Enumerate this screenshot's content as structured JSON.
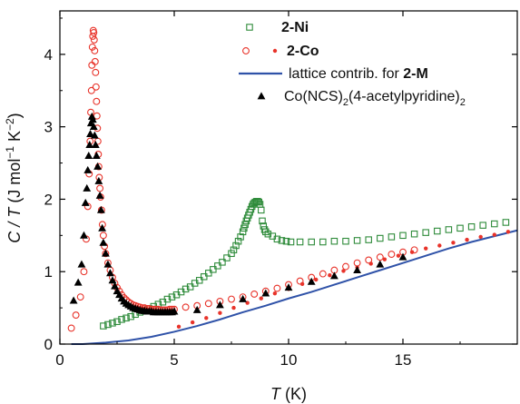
{
  "chart_data": {
    "type": "scatter",
    "xlabel": {
      "main": "T",
      "unit": " (K)"
    },
    "ylabel": {
      "main": "C / T",
      "unit_prefix": " (J mol",
      "unit_sup1": "−1",
      "unit_mid": " K",
      "unit_sup2": "−2",
      "unit_suffix": ")"
    },
    "xlim": [
      0,
      20
    ],
    "ylim": [
      0,
      4.6
    ],
    "xticks": [
      0,
      5,
      10,
      15
    ],
    "yticks": [
      0,
      1,
      2,
      3,
      4
    ],
    "grid": false,
    "legend_position": "top-right",
    "legend": [
      {
        "series": "ni",
        "label": "2-Ni",
        "bold": true
      },
      {
        "series": "co",
        "label": "2-Co",
        "bold": true
      },
      {
        "series": "lattice",
        "label_prefix": "lattice contrib. for ",
        "label_bold": "2-M"
      },
      {
        "series": "ref",
        "label_parts": [
          "Co(NCS)",
          "2",
          "(4-acetylpyridine)",
          "2"
        ]
      }
    ],
    "series": [
      {
        "id": "ni",
        "marker": "open-square",
        "color": "#2e8b3a",
        "x": [
          1.9,
          2.1,
          2.3,
          2.5,
          2.7,
          2.9,
          3.1,
          3.3,
          3.5,
          3.7,
          3.9,
          4.1,
          4.3,
          4.5,
          4.7,
          4.9,
          5.1,
          5.3,
          5.5,
          5.7,
          5.9,
          6.1,
          6.3,
          6.5,
          6.7,
          6.9,
          7.1,
          7.3,
          7.5,
          7.6,
          7.7,
          7.8,
          7.9,
          8.0,
          8.05,
          8.1,
          8.15,
          8.2,
          8.25,
          8.3,
          8.35,
          8.4,
          8.45,
          8.5,
          8.55,
          8.6,
          8.65,
          8.7,
          8.75,
          8.8,
          8.85,
          8.9,
          8.95,
          9.0,
          9.1,
          9.3,
          9.5,
          9.7,
          9.9,
          10.1,
          10.5,
          11.0,
          11.5,
          12.0,
          12.5,
          13.0,
          13.5,
          14.0,
          14.5,
          15.0,
          15.5,
          16.0,
          16.5,
          17.0,
          17.5,
          18.0,
          18.5,
          19.0,
          19.5
        ],
        "y": [
          0.25,
          0.27,
          0.29,
          0.31,
          0.34,
          0.36,
          0.38,
          0.41,
          0.44,
          0.46,
          0.49,
          0.52,
          0.55,
          0.58,
          0.62,
          0.65,
          0.68,
          0.72,
          0.76,
          0.79,
          0.84,
          0.88,
          0.93,
          0.98,
          1.03,
          1.08,
          1.13,
          1.19,
          1.25,
          1.3,
          1.36,
          1.42,
          1.48,
          1.55,
          1.6,
          1.65,
          1.7,
          1.74,
          1.78,
          1.82,
          1.86,
          1.9,
          1.93,
          1.95,
          1.96,
          1.97,
          1.97,
          1.96,
          1.93,
          1.85,
          1.7,
          1.63,
          1.58,
          1.55,
          1.52,
          1.49,
          1.45,
          1.43,
          1.42,
          1.41,
          1.41,
          1.41,
          1.41,
          1.42,
          1.42,
          1.43,
          1.44,
          1.46,
          1.48,
          1.5,
          1.52,
          1.54,
          1.56,
          1.58,
          1.6,
          1.62,
          1.64,
          1.66,
          1.68
        ]
      },
      {
        "id": "co",
        "marker": "open-circle",
        "color": "#e8332a",
        "x": [
          0.5,
          0.7,
          0.9,
          1.05,
          1.15,
          1.22,
          1.28,
          1.32,
          1.35,
          1.38,
          1.4,
          1.42,
          1.44,
          1.46,
          1.48,
          1.5,
          1.52,
          1.54,
          1.56,
          1.58,
          1.6,
          1.62,
          1.64,
          1.66,
          1.68,
          1.7,
          1.72,
          1.75,
          1.78,
          1.82,
          1.86,
          1.9,
          1.95,
          2.0,
          2.1,
          2.2,
          2.3,
          2.4,
          2.5,
          2.6,
          2.7,
          2.8,
          2.9,
          3.0,
          3.1,
          3.2,
          3.3,
          3.4,
          3.5,
          3.6,
          3.7,
          3.8,
          3.9,
          4.0,
          4.1,
          4.2,
          4.3,
          4.4,
          4.5,
          4.6,
          4.7,
          4.8,
          4.9,
          5.0,
          5.5,
          6.0,
          6.5,
          7.0,
          7.5,
          8.0,
          8.5,
          9.0,
          9.5,
          10.0,
          10.5,
          11.0,
          11.5,
          12.0,
          12.5,
          13.0,
          13.5,
          14.0,
          14.5,
          15.0,
          15.5
        ],
        "y": [
          0.22,
          0.4,
          0.65,
          1.0,
          1.45,
          1.9,
          2.35,
          2.8,
          3.2,
          3.5,
          3.85,
          4.1,
          4.25,
          4.33,
          4.3,
          4.2,
          4.05,
          3.9,
          3.75,
          3.55,
          3.35,
          3.15,
          2.98,
          2.8,
          2.62,
          2.45,
          2.3,
          2.15,
          2.03,
          1.85,
          1.65,
          1.5,
          1.35,
          1.25,
          1.12,
          1.02,
          0.92,
          0.84,
          0.78,
          0.73,
          0.68,
          0.64,
          0.61,
          0.58,
          0.56,
          0.54,
          0.53,
          0.52,
          0.51,
          0.5,
          0.5,
          0.49,
          0.49,
          0.48,
          0.48,
          0.48,
          0.48,
          0.47,
          0.47,
          0.47,
          0.47,
          0.48,
          0.48,
          0.48,
          0.51,
          0.53,
          0.56,
          0.59,
          0.62,
          0.65,
          0.69,
          0.73,
          0.77,
          0.82,
          0.87,
          0.92,
          0.97,
          1.02,
          1.07,
          1.12,
          1.16,
          1.2,
          1.24,
          1.27,
          1.3
        ]
      },
      {
        "id": "co_fill",
        "marker": "filled-dot",
        "color": "#e8332a",
        "x": [
          5.2,
          5.8,
          6.4,
          7.0,
          7.6,
          8.2,
          8.8,
          9.4,
          10.0,
          10.6,
          11.2,
          11.8,
          12.4,
          13.0,
          13.6,
          14.2,
          14.8,
          15.4,
          16.0,
          16.6,
          17.2,
          17.8,
          18.4,
          19.0,
          19.6
        ],
        "y": [
          0.24,
          0.3,
          0.36,
          0.43,
          0.5,
          0.57,
          0.63,
          0.7,
          0.76,
          0.83,
          0.89,
          0.95,
          1.01,
          1.06,
          1.11,
          1.17,
          1.22,
          1.27,
          1.32,
          1.36,
          1.4,
          1.44,
          1.48,
          1.51,
          1.55
        ]
      },
      {
        "id": "lattice",
        "marker": "line",
        "color": "#2f52a8",
        "x": [
          0.5,
          1.0,
          2.0,
          3.0,
          4.0,
          5.0,
          6.0,
          7.0,
          8.0,
          9.0,
          10.0,
          11.0,
          12.0,
          13.0,
          14.0,
          15.0,
          16.0,
          17.0,
          18.0,
          19.0,
          20.0
        ],
        "y": [
          0.0,
          0.0,
          0.02,
          0.05,
          0.1,
          0.17,
          0.25,
          0.34,
          0.44,
          0.53,
          0.63,
          0.72,
          0.82,
          0.92,
          1.02,
          1.12,
          1.22,
          1.32,
          1.41,
          1.49,
          1.57
        ]
      },
      {
        "id": "ref",
        "marker": "filled-triangle",
        "color": "#000000",
        "x": [
          0.6,
          0.8,
          0.95,
          1.05,
          1.12,
          1.18,
          1.22,
          1.26,
          1.3,
          1.33,
          1.36,
          1.4,
          1.44,
          1.48,
          1.52,
          1.56,
          1.6,
          1.65,
          1.7,
          1.75,
          1.8,
          1.85,
          1.9,
          2.0,
          2.1,
          2.2,
          2.3,
          2.4,
          2.5,
          2.6,
          2.7,
          2.8,
          2.9,
          3.0,
          3.1,
          3.2,
          3.3,
          3.4,
          3.5,
          3.6,
          3.7,
          3.8,
          3.9,
          4.0,
          4.1,
          4.2,
          4.3,
          4.4,
          4.5,
          4.6,
          4.7,
          4.8,
          4.9,
          5.0,
          6.0,
          7.0,
          8.0,
          9.0,
          10.0,
          11.0,
          12.0,
          13.0,
          14.0,
          15.0
        ],
        "y": [
          0.6,
          0.85,
          1.1,
          1.5,
          1.95,
          2.15,
          2.4,
          2.6,
          2.75,
          2.9,
          3.05,
          3.14,
          3.1,
          3.0,
          2.88,
          2.75,
          2.6,
          2.45,
          2.25,
          2.05,
          1.85,
          1.6,
          1.4,
          1.25,
          1.1,
          0.98,
          0.88,
          0.8,
          0.73,
          0.68,
          0.63,
          0.59,
          0.56,
          0.54,
          0.52,
          0.5,
          0.49,
          0.48,
          0.47,
          0.46,
          0.46,
          0.45,
          0.45,
          0.45,
          0.44,
          0.44,
          0.44,
          0.44,
          0.44,
          0.44,
          0.44,
          0.44,
          0.44,
          0.45,
          0.47,
          0.54,
          0.62,
          0.7,
          0.78,
          0.86,
          0.94,
          1.02,
          1.1,
          1.2
        ]
      }
    ]
  }
}
